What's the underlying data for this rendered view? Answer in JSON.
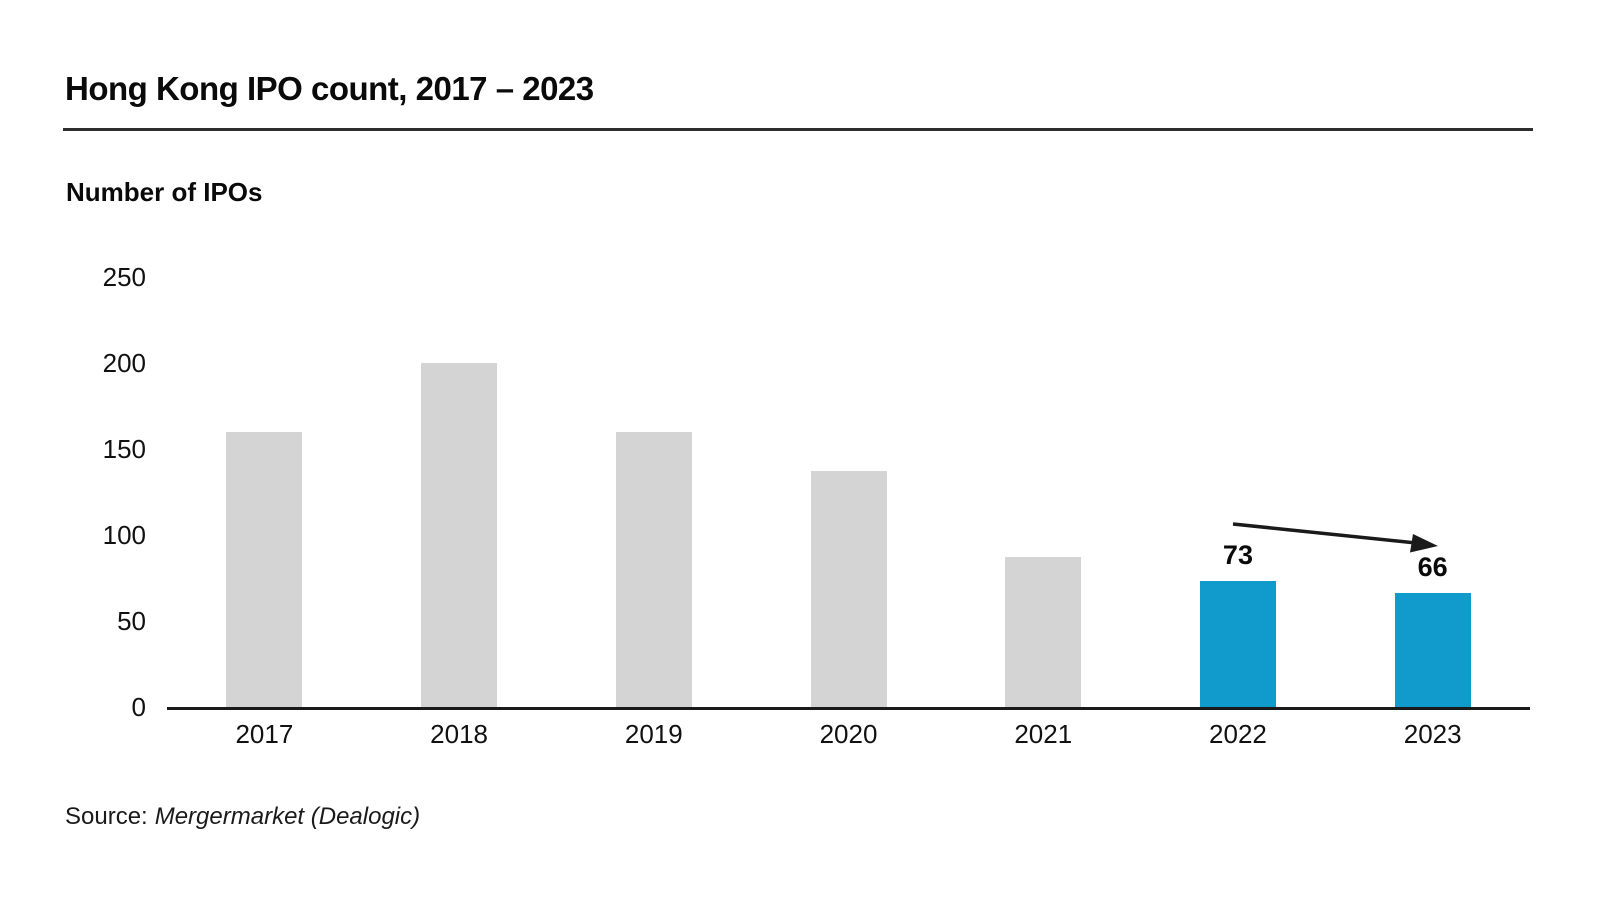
{
  "title": "Hong Kong IPO count, 2017 – 2023",
  "source": {
    "prefix": "Source:",
    "name": "Mergermarket (Dealogic)"
  },
  "colors": {
    "bar_default": "#d4d4d4",
    "bar_highlight": "#119acc",
    "axis": "#1a1a1a",
    "title_rule": "#2e2e2e"
  },
  "chart_data": {
    "type": "bar",
    "title": "Hong Kong IPO count, 2017 – 2023",
    "ylabel": "Number of IPOs",
    "xlabel": "",
    "categories": [
      "2017",
      "2018",
      "2019",
      "2020",
      "2021",
      "2022",
      "2023"
    ],
    "values": [
      160,
      200,
      160,
      137,
      87,
      73,
      66
    ],
    "highlight_years": [
      "2022",
      "2023"
    ],
    "data_labels": {
      "2022": "73",
      "2023": "66"
    },
    "yticks": [
      0,
      50,
      100,
      150,
      200,
      250
    ],
    "ylim": [
      0,
      250
    ],
    "grid": false,
    "legend": "none",
    "annotation": "black arrow sloping slightly downward from above the 2022 bar to above the 2023 bar"
  }
}
